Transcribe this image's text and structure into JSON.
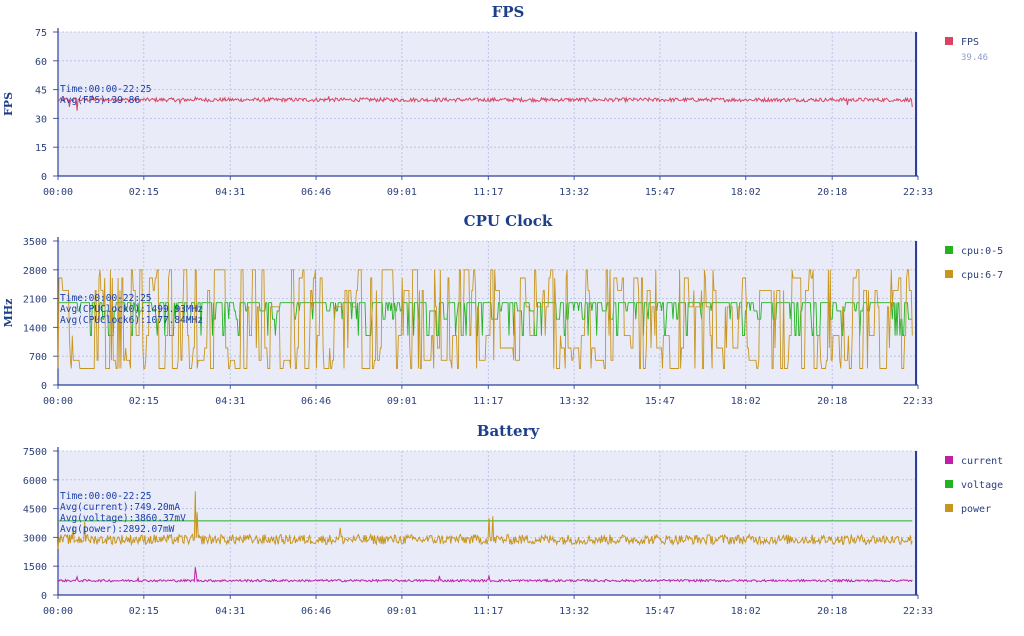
{
  "chart_data": [
    {
      "type": "line",
      "title": "FPS",
      "ylabel": "FPS",
      "ylim": [
        0,
        75
      ],
      "yticks": [
        0,
        15,
        30,
        45,
        60,
        75
      ],
      "xlim": [
        "00:00",
        "22:33"
      ],
      "xticks": [
        "00:00",
        "02:15",
        "04:31",
        "06:46",
        "09:01",
        "11:17",
        "13:32",
        "15:47",
        "18:02",
        "20:18",
        "22:33"
      ],
      "grid": true,
      "legend_position": "right",
      "annotations": [
        "Time:00:00-22:25",
        "Avg(FPS):39.86"
      ],
      "series": [
        {
          "name": "FPS",
          "legend_value": "39.46",
          "color": "#d9455f",
          "base": 39.7,
          "noise": 1.0,
          "spikes": [
            [
              0.3,
              36
            ],
            [
              0.5,
              34
            ],
            [
              0.9,
              42
            ],
            [
              3.2,
              38
            ],
            [
              3.6,
              41
            ],
            [
              7.1,
              41.5
            ],
            [
              20.7,
              37
            ],
            [
              22.4,
              36
            ]
          ]
        }
      ]
    },
    {
      "type": "line",
      "title": "CPU Clock",
      "ylabel": "MHz",
      "ylim": [
        0,
        3500
      ],
      "yticks": [
        0,
        700,
        1400,
        2100,
        2800,
        3500
      ],
      "xlim": [
        "00:00",
        "22:33"
      ],
      "xticks": [
        "00:00",
        "02:15",
        "04:31",
        "06:46",
        "09:01",
        "11:17",
        "13:32",
        "15:47",
        "18:02",
        "20:18",
        "22:33"
      ],
      "grid": true,
      "legend_position": "right",
      "annotations": [
        "Time:00:00-22:25",
        "Avg(CPUClock0):1499.93MHz",
        "Avg(CPUClock6):1077.84MHz"
      ],
      "series": [
        {
          "name": "cpu:0-5",
          "color": "#22b222",
          "avg": 1499.93,
          "levels": [
            1200,
            1600,
            1800,
            2000
          ]
        },
        {
          "name": "cpu:6-7",
          "color": "#c8961e",
          "avg": 1077.84,
          "levels": [
            400,
            400,
            600,
            900,
            1200,
            1900,
            2300,
            2600,
            2800
          ]
        }
      ]
    },
    {
      "type": "line",
      "title": "Battery",
      "ylabel": "",
      "ylim": [
        0,
        7500
      ],
      "yticks": [
        0,
        1500,
        3000,
        4500,
        6000,
        7500
      ],
      "xlim": [
        "00:00",
        "22:33"
      ],
      "xticks": [
        "00:00",
        "02:15",
        "04:31",
        "06:46",
        "09:01",
        "11:17",
        "13:32",
        "15:47",
        "18:02",
        "20:18",
        "22:33"
      ],
      "grid": true,
      "legend_position": "right",
      "annotations": [
        "Time:00:00-22:25",
        "Avg(current):749.20mA",
        "Avg(voltage):3860.37mV",
        "Avg(power):2892.07mW"
      ],
      "series": [
        {
          "name": "current",
          "color": "#c020a8",
          "base": 749.2,
          "noise": 60,
          "spikes": [
            [
              0.5,
              950
            ],
            [
              2.1,
              880
            ],
            [
              3.6,
              1450
            ],
            [
              3.62,
              1100
            ],
            [
              10.0,
              1000
            ],
            [
              11.3,
              980
            ]
          ]
        },
        {
          "name": "voltage",
          "color": "#22b222",
          "base": 3860.37,
          "noise": 0
        },
        {
          "name": "power",
          "color": "#c8961e",
          "base": 2892.07,
          "noise": 260,
          "spikes": [
            [
              0.0,
              2400
            ],
            [
              0.4,
              3600
            ],
            [
              0.7,
              3800
            ],
            [
              3.6,
              5400
            ],
            [
              3.65,
              4300
            ],
            [
              11.3,
              4000
            ],
            [
              11.4,
              4100
            ],
            [
              7.4,
              3500
            ]
          ]
        }
      ]
    }
  ]
}
